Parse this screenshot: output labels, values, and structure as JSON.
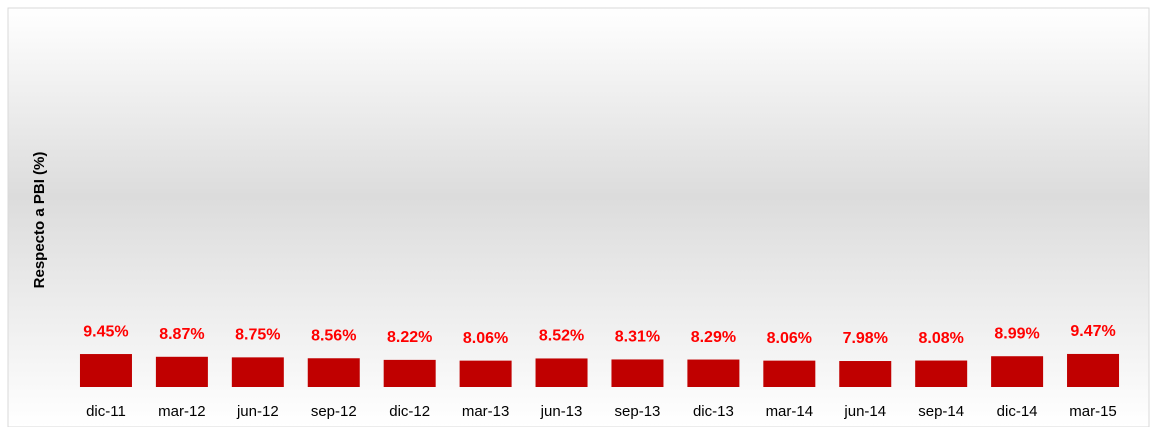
{
  "chart_data": {
    "type": "bar",
    "y_label": "Respecto a PBI (%)",
    "categories": [
      "dic-11",
      "mar-12",
      "jun-12",
      "sep-12",
      "dic-12",
      "mar-13",
      "jun-13",
      "sep-13",
      "dic-13",
      "mar-14",
      "jun-14",
      "sep-14",
      "dic-14",
      "mar-15"
    ],
    "values": [
      9.45,
      8.87,
      8.75,
      8.56,
      8.22,
      8.06,
      8.52,
      8.31,
      8.29,
      8.06,
      7.98,
      8.08,
      8.99,
      9.47
    ],
    "value_labels": [
      "9.45%",
      "8.87%",
      "8.75%",
      "8.56%",
      "8.22%",
      "8.06%",
      "8.52%",
      "8.31%",
      "8.29%",
      "8.06%",
      "7.98%",
      "8.08%",
      "8.99%",
      "9.47%"
    ],
    "color": "#c00000",
    "ylim": [
      2.5,
      82
    ]
  }
}
